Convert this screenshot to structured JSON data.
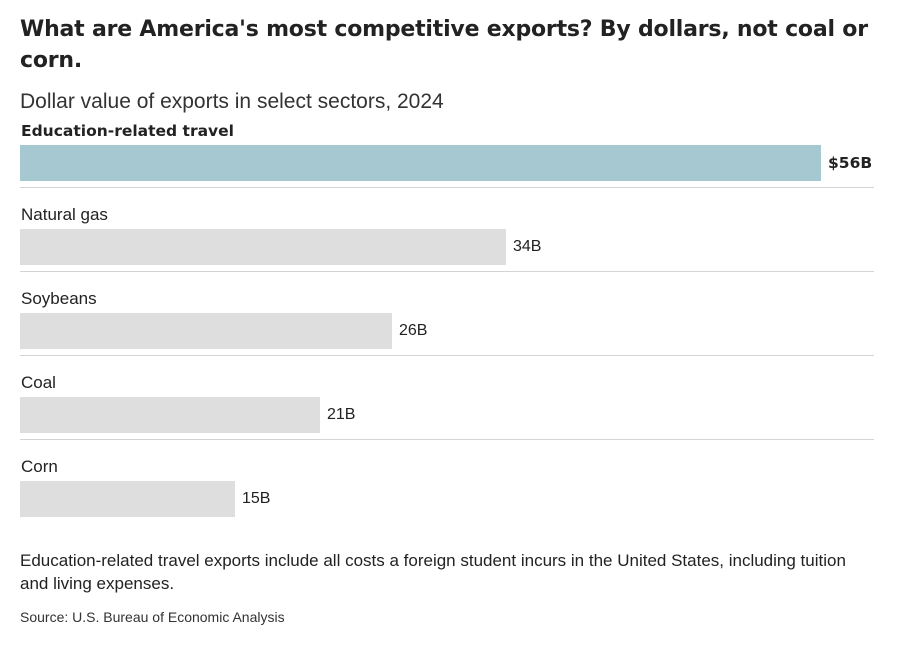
{
  "header": {
    "title": "What are America's most competitive exports? By dollars, not coal or corn.",
    "subtitle": "Dollar value of exports in select sectors, 2024"
  },
  "footer": {
    "note": "Education-related travel exports include all costs a foreign student incurs in the United States, including tuition and living expenses.",
    "source": "Source: U.S. Bureau of Economic Analysis"
  },
  "colors": {
    "highlight_bar": "#a6c8d0",
    "default_bar": "#dedede",
    "divider": "#d4d4d4",
    "text": "#222222"
  },
  "chart_data": {
    "type": "bar",
    "orientation": "horizontal",
    "title": "What are America's most competitive exports? By dollars, not coal or corn.",
    "subtitle": "Dollar value of exports in select sectors, 2024",
    "categories": [
      "Education-related travel",
      "Natural gas",
      "Soybeans",
      "Coal",
      "Corn"
    ],
    "values": [
      56,
      34,
      26,
      21,
      15
    ],
    "value_labels": [
      "$56B",
      "34B",
      "26B",
      "21B",
      "15B"
    ],
    "highlighted": [
      true,
      false,
      false,
      false,
      false
    ],
    "xlim": [
      0,
      56
    ],
    "grid": false,
    "legend": "none"
  }
}
